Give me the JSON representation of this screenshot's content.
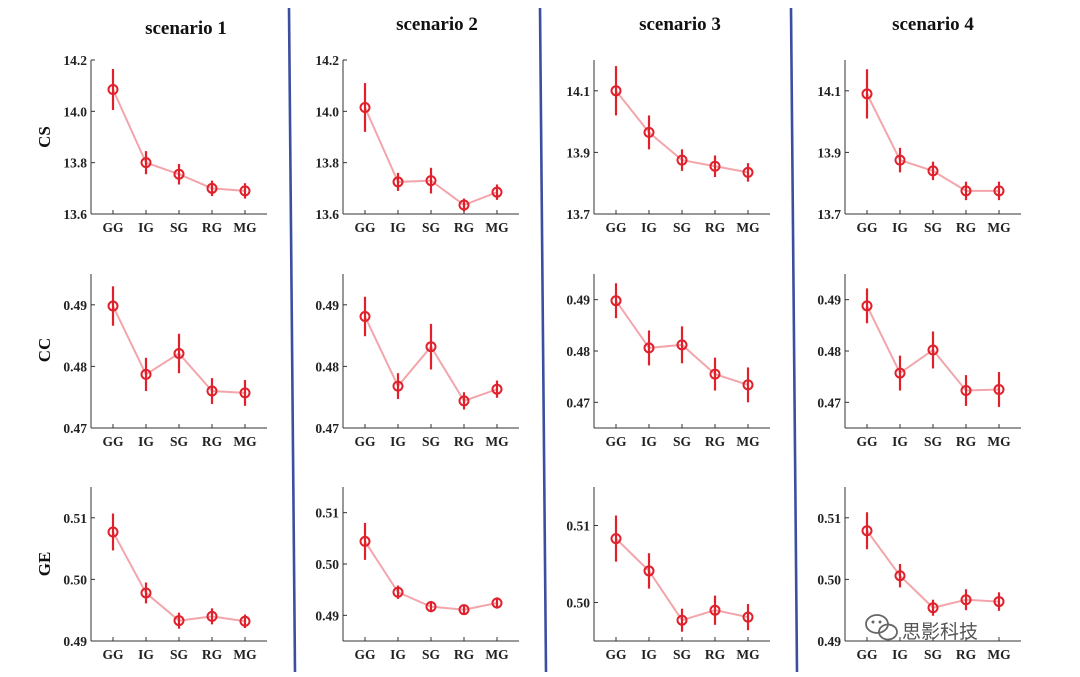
{
  "watermark": {
    "text": "思影科技",
    "icon": "wechat-icon",
    "color": "#555555"
  },
  "colors": {
    "point": "#e0202a",
    "line": "#f2a6ac",
    "divider": "#3b4fa0",
    "axis": "#333333"
  },
  "chart_data": [
    {
      "type": "line",
      "scenario": "scenario 1",
      "metric": "CS",
      "categories": [
        "GG",
        "IG",
        "SG",
        "RG",
        "MG"
      ],
      "ylim": [
        13.6,
        14.2
      ],
      "yticks": [
        "13.6",
        "13.8",
        "14.0",
        "14.2"
      ],
      "yticks_v": [
        13.6,
        13.8,
        14.0,
        14.2
      ],
      "values": [
        14.085,
        13.8,
        13.755,
        13.7,
        13.69
      ],
      "err": [
        0.08,
        0.045,
        0.04,
        0.03,
        0.03
      ]
    },
    {
      "type": "line",
      "scenario": "scenario 2",
      "metric": "CS",
      "categories": [
        "GG",
        "IG",
        "SG",
        "RG",
        "MG"
      ],
      "ylim": [
        13.6,
        14.2
      ],
      "yticks": [
        "13.6",
        "13.8",
        "14.0",
        "14.2"
      ],
      "yticks_v": [
        13.6,
        13.8,
        14.0,
        14.2
      ],
      "values": [
        14.015,
        13.725,
        13.73,
        13.635,
        13.685
      ],
      "err": [
        0.095,
        0.035,
        0.05,
        0.025,
        0.03
      ]
    },
    {
      "type": "line",
      "scenario": "scenario 3",
      "metric": "CS",
      "categories": [
        "GG",
        "IG",
        "SG",
        "RG",
        "MG"
      ],
      "ylim": [
        13.7,
        14.2
      ],
      "yticks": [
        "13.7",
        "13.9",
        "14.1"
      ],
      "yticks_v": [
        13.7,
        13.9,
        14.1
      ],
      "values": [
        14.1,
        13.965,
        13.875,
        13.855,
        13.835
      ],
      "err": [
        0.08,
        0.055,
        0.035,
        0.035,
        0.03
      ]
    },
    {
      "type": "line",
      "scenario": "scenario 4",
      "metric": "CS",
      "categories": [
        "GG",
        "IG",
        "SG",
        "RG",
        "MG"
      ],
      "ylim": [
        13.7,
        14.2
      ],
      "yticks": [
        "13.7",
        "13.9",
        "14.1"
      ],
      "yticks_v": [
        13.7,
        13.9,
        14.1
      ],
      "values": [
        14.09,
        13.875,
        13.84,
        13.775,
        13.775
      ],
      "err": [
        0.08,
        0.04,
        0.03,
        0.03,
        0.03
      ]
    },
    {
      "type": "line",
      "scenario": "scenario 1",
      "metric": "CC",
      "categories": [
        "GG",
        "IG",
        "SG",
        "RG",
        "MG"
      ],
      "ylim": [
        0.47,
        0.495
      ],
      "yticks": [
        "0.47",
        "0.48",
        "0.49"
      ],
      "yticks_v": [
        0.47,
        0.48,
        0.49
      ],
      "values": [
        0.4898,
        0.4787,
        0.4821,
        0.476,
        0.4757
      ],
      "err": [
        0.0032,
        0.0027,
        0.0032,
        0.0021,
        0.0021
      ]
    },
    {
      "type": "line",
      "scenario": "scenario 2",
      "metric": "CC",
      "categories": [
        "GG",
        "IG",
        "SG",
        "RG",
        "MG"
      ],
      "ylim": [
        0.47,
        0.495
      ],
      "yticks": [
        "0.47",
        "0.48",
        "0.49"
      ],
      "yticks_v": [
        0.47,
        0.48,
        0.49
      ],
      "values": [
        0.4881,
        0.4768,
        0.4832,
        0.4744,
        0.4763
      ],
      "err": [
        0.0032,
        0.0021,
        0.0037,
        0.0014,
        0.0014
      ]
    },
    {
      "type": "line",
      "scenario": "scenario 3",
      "metric": "CC",
      "categories": [
        "GG",
        "IG",
        "SG",
        "RG",
        "MG"
      ],
      "ylim": [
        0.465,
        0.495
      ],
      "yticks": [
        "0.47",
        "0.48",
        "0.49"
      ],
      "yticks_v": [
        0.47,
        0.48,
        0.49
      ],
      "values": [
        0.4898,
        0.4806,
        0.4812,
        0.4755,
        0.4734
      ],
      "err": [
        0.0034,
        0.0034,
        0.0036,
        0.0032,
        0.0034
      ]
    },
    {
      "type": "line",
      "scenario": "scenario 4",
      "metric": "CC",
      "categories": [
        "GG",
        "IG",
        "SG",
        "RG",
        "MG"
      ],
      "ylim": [
        0.465,
        0.495
      ],
      "yticks": [
        "0.47",
        "0.48",
        "0.49"
      ],
      "yticks_v": [
        0.47,
        0.48,
        0.49
      ],
      "values": [
        0.4888,
        0.4757,
        0.4802,
        0.4723,
        0.4725
      ],
      "err": [
        0.0034,
        0.0034,
        0.0036,
        0.003,
        0.0034
      ]
    },
    {
      "type": "line",
      "scenario": "scenario 1",
      "metric": "GE",
      "categories": [
        "GG",
        "IG",
        "SG",
        "RG",
        "MG"
      ],
      "ylim": [
        0.49,
        0.515
      ],
      "yticks": [
        "0.49",
        "0.50",
        "0.51"
      ],
      "yticks_v": [
        0.49,
        0.5,
        0.51
      ],
      "values": [
        0.5077,
        0.4978,
        0.4933,
        0.494,
        0.4932
      ],
      "err": [
        0.003,
        0.0017,
        0.0013,
        0.0013,
        0.0011
      ]
    },
    {
      "type": "line",
      "scenario": "scenario 2",
      "metric": "GE",
      "categories": [
        "GG",
        "IG",
        "SG",
        "RG",
        "MG"
      ],
      "ylim": [
        0.485,
        0.515
      ],
      "yticks": [
        "0.49",
        "0.50",
        "0.51"
      ],
      "yticks_v": [
        0.49,
        0.5,
        0.51
      ],
      "values": [
        0.5044,
        0.4945,
        0.4917,
        0.4911,
        0.4924
      ],
      "err": [
        0.0036,
        0.0013,
        0.0011,
        0.0009,
        0.0011
      ]
    },
    {
      "type": "line",
      "scenario": "scenario 3",
      "metric": "GE",
      "categories": [
        "GG",
        "IG",
        "SG",
        "RG",
        "MG"
      ],
      "ylim": [
        0.495,
        0.515
      ],
      "yticks": [
        "0.50",
        "0.51"
      ],
      "yticks_v": [
        0.5,
        0.51
      ],
      "values": [
        0.5083,
        0.5041,
        0.4977,
        0.499,
        0.4981
      ],
      "err": [
        0.003,
        0.0023,
        0.0015,
        0.0019,
        0.0017
      ]
    },
    {
      "type": "line",
      "scenario": "scenario 4",
      "metric": "GE",
      "categories": [
        "GG",
        "IG",
        "SG",
        "RG",
        "MG"
      ],
      "ylim": [
        0.49,
        0.515
      ],
      "yticks": [
        "0.49",
        "0.50",
        "0.51"
      ],
      "yticks_v": [
        0.49,
        0.5,
        0.51
      ],
      "values": [
        0.5079,
        0.5006,
        0.4954,
        0.4967,
        0.4964
      ],
      "err": [
        0.003,
        0.0019,
        0.0013,
        0.0017,
        0.0015
      ]
    }
  ]
}
